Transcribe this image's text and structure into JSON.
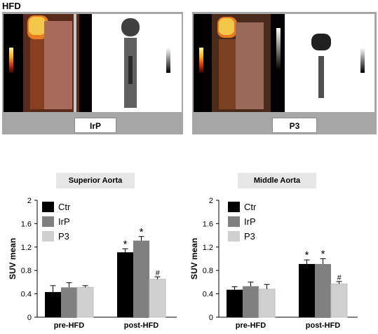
{
  "figure_label": "HFD",
  "images": [
    {
      "label": "IrP"
    },
    {
      "label": "P3"
    }
  ],
  "colors": {
    "ctr": "#000000",
    "irp": "#808080",
    "p3": "#d0d0d0",
    "panel": "#a6a6a6"
  },
  "chart_data": [
    {
      "type": "bar",
      "title": "Superior Aorta",
      "ylabel": "SUV mean",
      "xlabel": "",
      "ylim": [
        0,
        2
      ],
      "yticks": [
        "0",
        "0.4",
        "0.8",
        "1.2",
        "1.6",
        "2"
      ],
      "grid": false,
      "legend_position": "top-left",
      "categories": [
        "pre-HFD",
        "post-HFD"
      ],
      "series": [
        {
          "name": "Ctr",
          "values": [
            0.43,
            1.11
          ],
          "errors": [
            0.11,
            0.06
          ],
          "markers": [
            "",
            "*"
          ]
        },
        {
          "name": "IrP",
          "values": [
            0.51,
            1.31
          ],
          "errors": [
            0.08,
            0.07
          ],
          "markers": [
            "",
            "*"
          ]
        },
        {
          "name": "P3",
          "values": [
            0.51,
            0.65
          ],
          "errors": [
            0.03,
            0.04
          ],
          "markers": [
            "",
            "#"
          ]
        }
      ]
    },
    {
      "type": "bar",
      "title": "Middle Aorta",
      "ylabel": "SUV mean",
      "xlabel": "",
      "ylim": [
        0,
        2
      ],
      "yticks": [
        "0",
        "0.4",
        "0.8",
        "1.2",
        "1.6",
        "2"
      ],
      "grid": false,
      "legend_position": "top-left",
      "categories": [
        "pre-HFD",
        "post-HFD"
      ],
      "series": [
        {
          "name": "Ctr",
          "values": [
            0.47,
            0.91
          ],
          "errors": [
            0.05,
            0.07
          ],
          "markers": [
            "",
            "*"
          ]
        },
        {
          "name": "IrP",
          "values": [
            0.53,
            0.91
          ],
          "errors": [
            0.07,
            0.09
          ],
          "markers": [
            "",
            "*"
          ]
        },
        {
          "name": "P3",
          "values": [
            0.48,
            0.57
          ],
          "errors": [
            0.08,
            0.04
          ],
          "markers": [
            "",
            "#"
          ]
        }
      ]
    }
  ]
}
